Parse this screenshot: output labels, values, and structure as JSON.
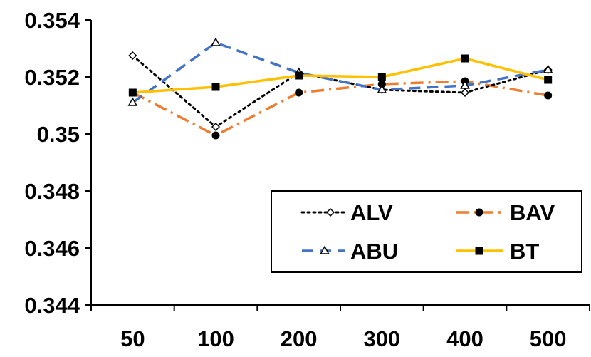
{
  "chart_data": {
    "type": "line",
    "categories": [
      "50",
      "100",
      "200",
      "300",
      "400",
      "500"
    ],
    "y_tick_labels": [
      "0.344",
      "0.346",
      "0.348",
      "0.35",
      "0.352",
      "0.354"
    ],
    "ylim": [
      0.344,
      0.354
    ],
    "y_ticks": [
      0.344,
      0.346,
      0.348,
      0.35,
      0.352,
      0.354
    ],
    "title": "",
    "xlabel": "",
    "ylabel": "",
    "grid": false,
    "legend_position": "center-right",
    "series": [
      {
        "name": "ALV",
        "color": "#000000",
        "dash": "dotted",
        "marker": "diamond-open",
        "values": [
          0.35275,
          0.35025,
          0.35215,
          0.35155,
          0.35145,
          0.35225
        ]
      },
      {
        "name": "BAV",
        "color": "#ED7D31",
        "dash": "dash-dot",
        "marker": "circle-filled",
        "values": [
          0.35145,
          0.34995,
          0.35145,
          0.35175,
          0.35185,
          0.35135
        ]
      },
      {
        "name": "ABU",
        "color": "#4472C4",
        "dash": "dashed",
        "marker": "triangle-open",
        "values": [
          0.3511,
          0.3532,
          0.35215,
          0.35155,
          0.3517,
          0.35225
        ]
      },
      {
        "name": "BT",
        "color": "#FFC000",
        "dash": "solid",
        "marker": "square-filled",
        "values": [
          0.35145,
          0.35165,
          0.35205,
          0.352,
          0.35265,
          0.3519
        ]
      }
    ]
  }
}
